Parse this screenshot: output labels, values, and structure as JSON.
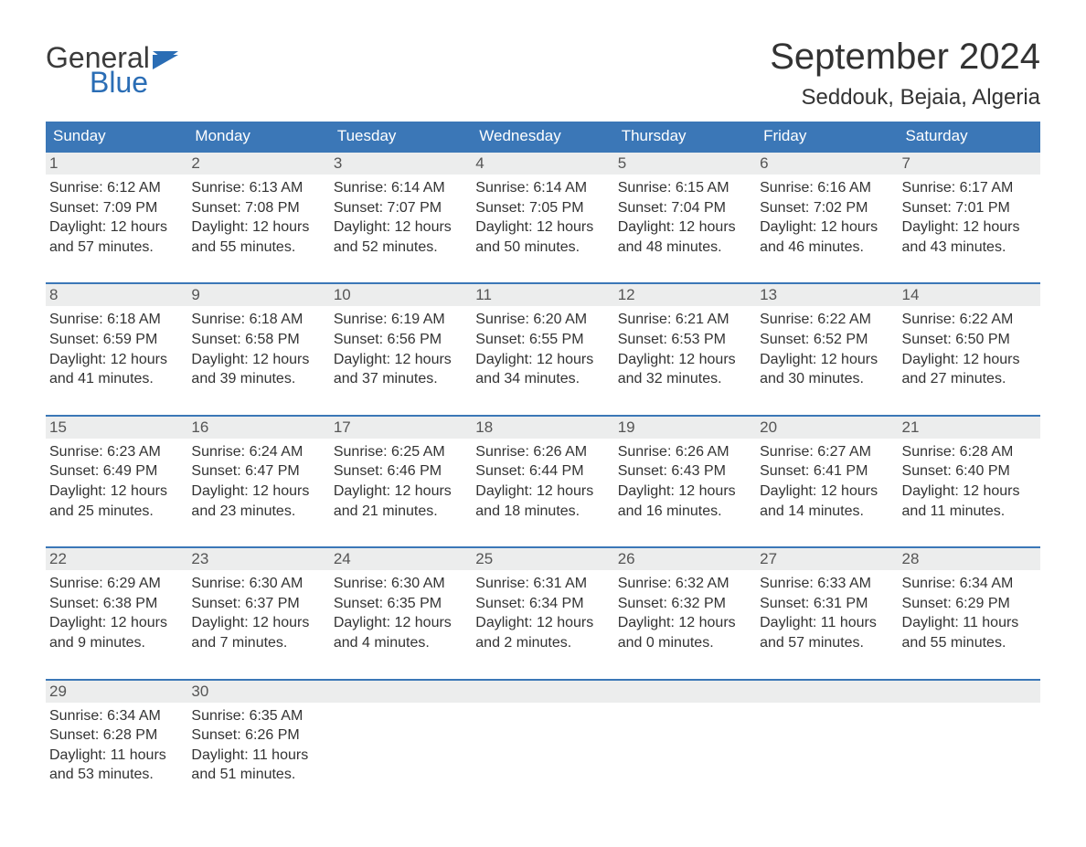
{
  "logo": {
    "text1": "General",
    "text2": "Blue",
    "flag_color": "#2a6db5"
  },
  "title": "September 2024",
  "location": "Seddouk, Bejaia, Algeria",
  "colors": {
    "header_bg": "#3b77b7",
    "header_text": "#ffffff",
    "daynum_bg": "#eceded",
    "cell_border": "#3b77b7",
    "body_text": "#333333"
  },
  "font": {
    "family": "Arial",
    "title_size": 40,
    "location_size": 24,
    "header_size": 17,
    "body_size": 16
  },
  "weekdays": [
    "Sunday",
    "Monday",
    "Tuesday",
    "Wednesday",
    "Thursday",
    "Friday",
    "Saturday"
  ],
  "days": [
    {
      "n": 1,
      "sunrise": "6:12 AM",
      "sunset": "7:09 PM",
      "daylight": "12 hours and 57 minutes."
    },
    {
      "n": 2,
      "sunrise": "6:13 AM",
      "sunset": "7:08 PM",
      "daylight": "12 hours and 55 minutes."
    },
    {
      "n": 3,
      "sunrise": "6:14 AM",
      "sunset": "7:07 PM",
      "daylight": "12 hours and 52 minutes."
    },
    {
      "n": 4,
      "sunrise": "6:14 AM",
      "sunset": "7:05 PM",
      "daylight": "12 hours and 50 minutes."
    },
    {
      "n": 5,
      "sunrise": "6:15 AM",
      "sunset": "7:04 PM",
      "daylight": "12 hours and 48 minutes."
    },
    {
      "n": 6,
      "sunrise": "6:16 AM",
      "sunset": "7:02 PM",
      "daylight": "12 hours and 46 minutes."
    },
    {
      "n": 7,
      "sunrise": "6:17 AM",
      "sunset": "7:01 PM",
      "daylight": "12 hours and 43 minutes."
    },
    {
      "n": 8,
      "sunrise": "6:18 AM",
      "sunset": "6:59 PM",
      "daylight": "12 hours and 41 minutes."
    },
    {
      "n": 9,
      "sunrise": "6:18 AM",
      "sunset": "6:58 PM",
      "daylight": "12 hours and 39 minutes."
    },
    {
      "n": 10,
      "sunrise": "6:19 AM",
      "sunset": "6:56 PM",
      "daylight": "12 hours and 37 minutes."
    },
    {
      "n": 11,
      "sunrise": "6:20 AM",
      "sunset": "6:55 PM",
      "daylight": "12 hours and 34 minutes."
    },
    {
      "n": 12,
      "sunrise": "6:21 AM",
      "sunset": "6:53 PM",
      "daylight": "12 hours and 32 minutes."
    },
    {
      "n": 13,
      "sunrise": "6:22 AM",
      "sunset": "6:52 PM",
      "daylight": "12 hours and 30 minutes."
    },
    {
      "n": 14,
      "sunrise": "6:22 AM",
      "sunset": "6:50 PM",
      "daylight": "12 hours and 27 minutes."
    },
    {
      "n": 15,
      "sunrise": "6:23 AM",
      "sunset": "6:49 PM",
      "daylight": "12 hours and 25 minutes."
    },
    {
      "n": 16,
      "sunrise": "6:24 AM",
      "sunset": "6:47 PM",
      "daylight": "12 hours and 23 minutes."
    },
    {
      "n": 17,
      "sunrise": "6:25 AM",
      "sunset": "6:46 PM",
      "daylight": "12 hours and 21 minutes."
    },
    {
      "n": 18,
      "sunrise": "6:26 AM",
      "sunset": "6:44 PM",
      "daylight": "12 hours and 18 minutes."
    },
    {
      "n": 19,
      "sunrise": "6:26 AM",
      "sunset": "6:43 PM",
      "daylight": "12 hours and 16 minutes."
    },
    {
      "n": 20,
      "sunrise": "6:27 AM",
      "sunset": "6:41 PM",
      "daylight": "12 hours and 14 minutes."
    },
    {
      "n": 21,
      "sunrise": "6:28 AM",
      "sunset": "6:40 PM",
      "daylight": "12 hours and 11 minutes."
    },
    {
      "n": 22,
      "sunrise": "6:29 AM",
      "sunset": "6:38 PM",
      "daylight": "12 hours and 9 minutes."
    },
    {
      "n": 23,
      "sunrise": "6:30 AM",
      "sunset": "6:37 PM",
      "daylight": "12 hours and 7 minutes."
    },
    {
      "n": 24,
      "sunrise": "6:30 AM",
      "sunset": "6:35 PM",
      "daylight": "12 hours and 4 minutes."
    },
    {
      "n": 25,
      "sunrise": "6:31 AM",
      "sunset": "6:34 PM",
      "daylight": "12 hours and 2 minutes."
    },
    {
      "n": 26,
      "sunrise": "6:32 AM",
      "sunset": "6:32 PM",
      "daylight": "12 hours and 0 minutes."
    },
    {
      "n": 27,
      "sunrise": "6:33 AM",
      "sunset": "6:31 PM",
      "daylight": "11 hours and 57 minutes."
    },
    {
      "n": 28,
      "sunrise": "6:34 AM",
      "sunset": "6:29 PM",
      "daylight": "11 hours and 55 minutes."
    },
    {
      "n": 29,
      "sunrise": "6:34 AM",
      "sunset": "6:28 PM",
      "daylight": "11 hours and 53 minutes."
    },
    {
      "n": 30,
      "sunrise": "6:35 AM",
      "sunset": "6:26 PM",
      "daylight": "11 hours and 51 minutes."
    }
  ],
  "labels": {
    "sunrise": "Sunrise:",
    "sunset": "Sunset:",
    "daylight": "Daylight:"
  }
}
